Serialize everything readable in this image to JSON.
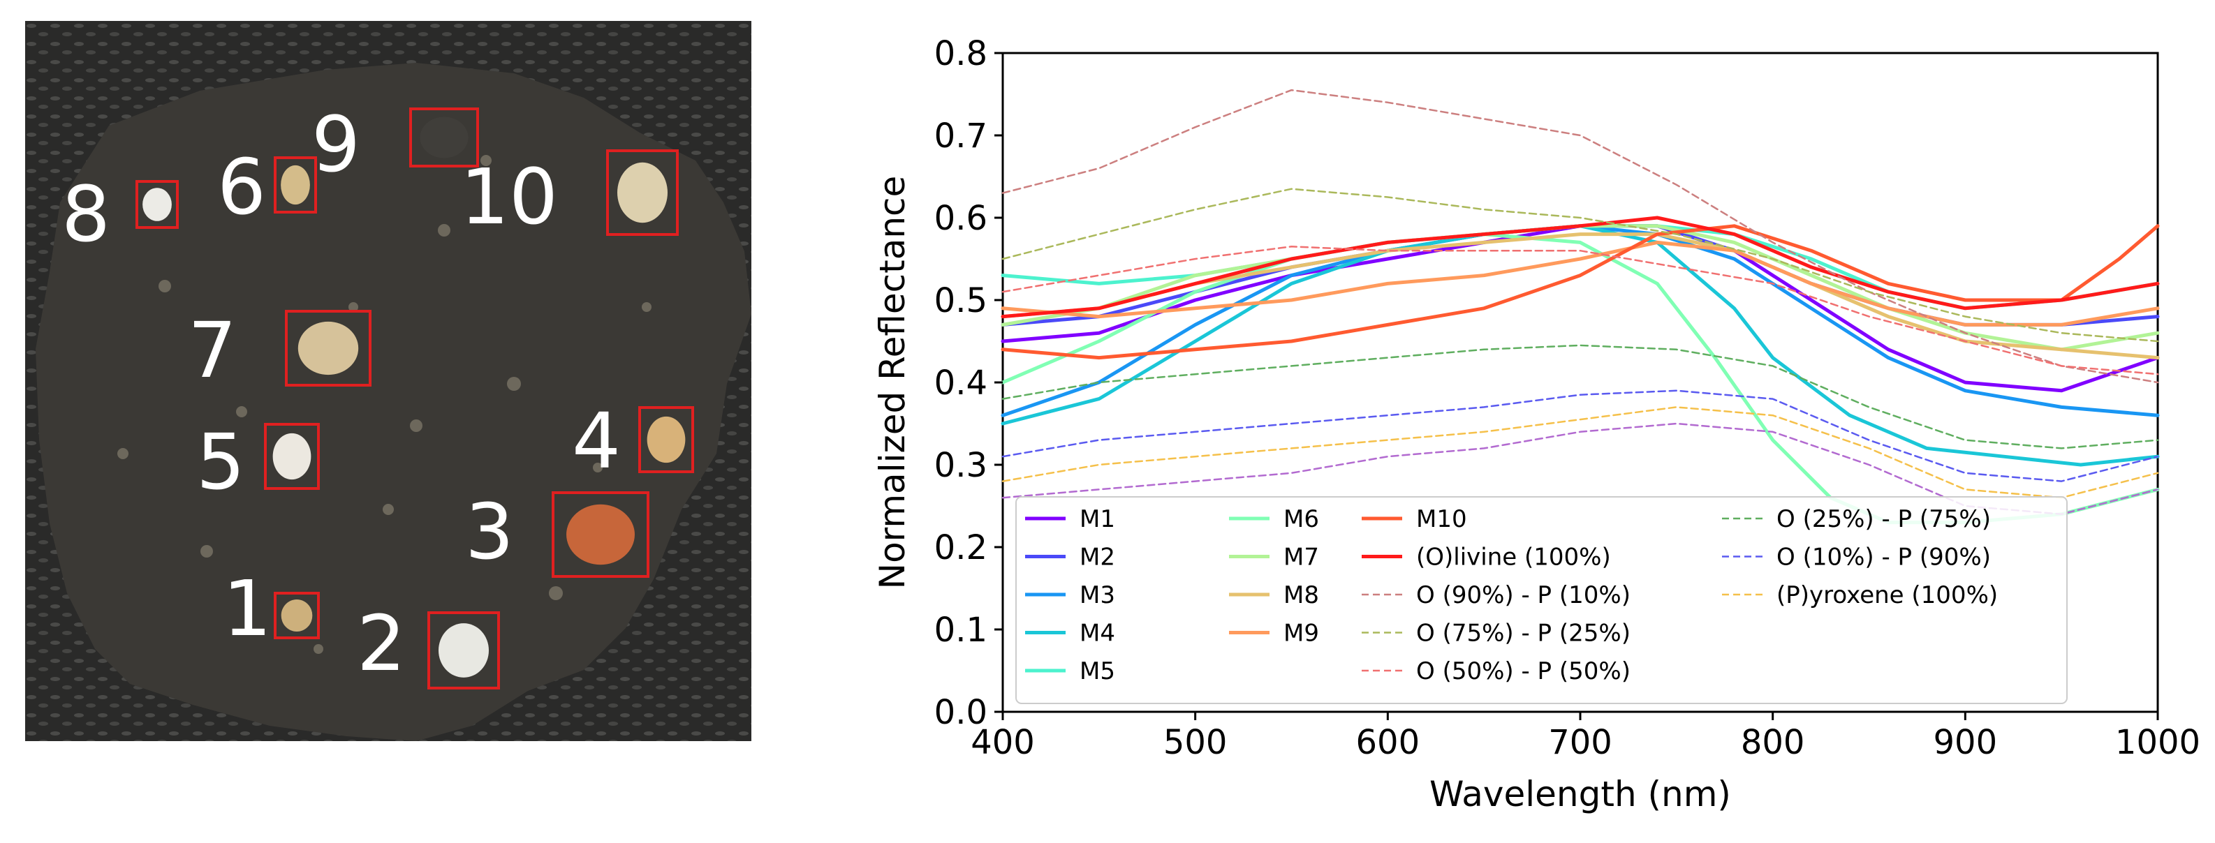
{
  "photo": {
    "description_colors": {
      "box": "#e02020",
      "label": "#ffffff",
      "background": "#2b2a28",
      "rock": "#3a3834"
    },
    "regions": [
      {
        "label": "1"
      },
      {
        "label": "2"
      },
      {
        "label": "3"
      },
      {
        "label": "4"
      },
      {
        "label": "5"
      },
      {
        "label": "6"
      },
      {
        "label": "7"
      },
      {
        "label": "8"
      },
      {
        "label": "9"
      },
      {
        "label": "10"
      }
    ]
  },
  "chart_data": {
    "type": "line",
    "xlabel": "Wavelength (nm)",
    "ylabel": "Normalized Reflectance",
    "xlim": [
      400,
      1000
    ],
    "ylim": [
      0.0,
      0.8
    ],
    "xticks": [
      "400",
      "500",
      "600",
      "700",
      "800",
      "900",
      "1000"
    ],
    "yticks": [
      "0.0",
      "0.1",
      "0.2",
      "0.3",
      "0.4",
      "0.5",
      "0.6",
      "0.7",
      "0.8"
    ],
    "grid": false,
    "legend_position": "bottom",
    "series": [
      {
        "name": "M1",
        "color": "#8000ff",
        "style": "solid",
        "x": [
          400,
          450,
          500,
          550,
          600,
          650,
          700,
          740,
          780,
          820,
          860,
          900,
          950,
          1000
        ],
        "values": [
          0.45,
          0.46,
          0.5,
          0.53,
          0.55,
          0.57,
          0.59,
          0.59,
          0.56,
          0.5,
          0.44,
          0.4,
          0.39,
          0.43
        ]
      },
      {
        "name": "M2",
        "color": "#4a49f8",
        "style": "solid",
        "x": [
          400,
          450,
          500,
          550,
          600,
          650,
          700,
          740,
          780,
          820,
          860,
          900,
          950,
          1000
        ],
        "values": [
          0.47,
          0.48,
          0.51,
          0.54,
          0.56,
          0.58,
          0.59,
          0.59,
          0.56,
          0.52,
          0.49,
          0.47,
          0.47,
          0.48
        ]
      },
      {
        "name": "M3",
        "color": "#1996f3",
        "style": "solid",
        "x": [
          400,
          450,
          500,
          550,
          600,
          650,
          700,
          740,
          780,
          820,
          860,
          900,
          950,
          1000
        ],
        "values": [
          0.36,
          0.4,
          0.47,
          0.53,
          0.56,
          0.58,
          0.59,
          0.58,
          0.55,
          0.49,
          0.43,
          0.39,
          0.37,
          0.36
        ]
      },
      {
        "name": "M4",
        "color": "#1ac6d7",
        "style": "solid",
        "x": [
          400,
          450,
          500,
          550,
          600,
          650,
          700,
          740,
          780,
          800,
          840,
          880,
          920,
          960,
          1000
        ],
        "values": [
          0.35,
          0.38,
          0.45,
          0.52,
          0.56,
          0.58,
          0.59,
          0.57,
          0.49,
          0.43,
          0.36,
          0.32,
          0.31,
          0.3,
          0.31
        ]
      },
      {
        "name": "M5",
        "color": "#4cf2ce",
        "style": "solid",
        "x": [
          400,
          450,
          500,
          550,
          600,
          650,
          700,
          740,
          780,
          820,
          860,
          900,
          950,
          1000
        ],
        "values": [
          0.53,
          0.52,
          0.53,
          0.55,
          0.57,
          0.58,
          0.59,
          0.59,
          0.58,
          0.55,
          0.51,
          0.49,
          0.5,
          0.52
        ]
      },
      {
        "name": "M6",
        "color": "#80ffb4",
        "style": "solid",
        "x": [
          400,
          450,
          500,
          550,
          600,
          650,
          700,
          740,
          770,
          800,
          830,
          860,
          900,
          950,
          1000
        ],
        "values": [
          0.4,
          0.45,
          0.51,
          0.55,
          0.57,
          0.58,
          0.57,
          0.52,
          0.43,
          0.33,
          0.26,
          0.23,
          0.23,
          0.24,
          0.27
        ]
      },
      {
        "name": "M7",
        "color": "#b2f396",
        "style": "solid",
        "x": [
          400,
          450,
          500,
          550,
          600,
          650,
          700,
          740,
          780,
          820,
          860,
          900,
          950,
          1000
        ],
        "values": [
          0.47,
          0.49,
          0.53,
          0.55,
          0.57,
          0.58,
          0.59,
          0.59,
          0.57,
          0.53,
          0.49,
          0.46,
          0.44,
          0.46
        ]
      },
      {
        "name": "M8",
        "color": "#e6c16e",
        "style": "solid",
        "x": [
          400,
          450,
          500,
          550,
          600,
          650,
          700,
          740,
          780,
          820,
          860,
          900,
          950,
          1000
        ],
        "values": [
          0.48,
          0.49,
          0.52,
          0.54,
          0.56,
          0.57,
          0.58,
          0.58,
          0.56,
          0.52,
          0.48,
          0.45,
          0.44,
          0.43
        ]
      },
      {
        "name": "M9",
        "color": "#ff9a5c",
        "style": "solid",
        "x": [
          400,
          450,
          500,
          550,
          600,
          650,
          700,
          740,
          780,
          820,
          860,
          900,
          950,
          1000
        ],
        "values": [
          0.49,
          0.48,
          0.49,
          0.5,
          0.52,
          0.53,
          0.55,
          0.57,
          0.56,
          0.52,
          0.49,
          0.47,
          0.47,
          0.49
        ]
      },
      {
        "name": "M10",
        "color": "#ff5a30",
        "style": "solid",
        "x": [
          400,
          450,
          500,
          550,
          600,
          650,
          700,
          740,
          780,
          820,
          860,
          900,
          950,
          980,
          1000
        ],
        "values": [
          0.44,
          0.43,
          0.44,
          0.45,
          0.47,
          0.49,
          0.53,
          0.58,
          0.59,
          0.56,
          0.52,
          0.5,
          0.5,
          0.55,
          0.59
        ]
      },
      {
        "name": "(O)livine (100%)",
        "color": "#ff1a1a",
        "style": "solid",
        "x": [
          400,
          450,
          500,
          550,
          600,
          650,
          700,
          740,
          780,
          820,
          860,
          900,
          950,
          1000
        ],
        "values": [
          0.48,
          0.49,
          0.52,
          0.55,
          0.57,
          0.58,
          0.59,
          0.6,
          0.58,
          0.54,
          0.51,
          0.49,
          0.5,
          0.52
        ]
      },
      {
        "name": "O (90%) - P (10%)",
        "color": "#cc7f7f",
        "style": "dashed",
        "x": [
          400,
          450,
          500,
          550,
          600,
          650,
          700,
          750,
          800,
          850,
          900,
          950,
          1000
        ],
        "values": [
          0.63,
          0.66,
          0.71,
          0.755,
          0.74,
          0.72,
          0.7,
          0.64,
          0.57,
          0.51,
          0.46,
          0.42,
          0.4
        ]
      },
      {
        "name": "O (75%) - P (25%)",
        "color": "#aab85a",
        "style": "dashed",
        "x": [
          400,
          450,
          500,
          550,
          600,
          650,
          700,
          750,
          800,
          850,
          900,
          950,
          1000
        ],
        "values": [
          0.55,
          0.58,
          0.61,
          0.635,
          0.625,
          0.61,
          0.6,
          0.58,
          0.55,
          0.51,
          0.48,
          0.46,
          0.45
        ]
      },
      {
        "name": "O (50%) - P (50%)",
        "color": "#f07070",
        "style": "dashed",
        "x": [
          400,
          450,
          500,
          550,
          600,
          650,
          700,
          750,
          800,
          850,
          900,
          950,
          1000
        ],
        "values": [
          0.51,
          0.53,
          0.55,
          0.565,
          0.56,
          0.56,
          0.56,
          0.54,
          0.52,
          0.48,
          0.45,
          0.42,
          0.41
        ]
      },
      {
        "name": "O (25%) - P (75%)",
        "color": "#5fae5f",
        "style": "dashed",
        "x": [
          400,
          450,
          500,
          550,
          600,
          650,
          700,
          750,
          800,
          850,
          900,
          950,
          1000
        ],
        "values": [
          0.38,
          0.4,
          0.41,
          0.42,
          0.43,
          0.44,
          0.445,
          0.44,
          0.42,
          0.37,
          0.33,
          0.32,
          0.33
        ]
      },
      {
        "name": "O (10%) - P (90%)",
        "color": "#5a5af0",
        "style": "dashed",
        "x": [
          400,
          450,
          500,
          550,
          600,
          650,
          700,
          750,
          800,
          850,
          900,
          950,
          1000
        ],
        "values": [
          0.31,
          0.33,
          0.34,
          0.35,
          0.36,
          0.37,
          0.385,
          0.39,
          0.38,
          0.33,
          0.29,
          0.28,
          0.31
        ]
      },
      {
        "name": "(P)yroxene (100%)",
        "color": "#f5c04a",
        "style": "dashed",
        "x": [
          400,
          450,
          500,
          550,
          600,
          650,
          700,
          750,
          800,
          850,
          900,
          950,
          1000
        ],
        "values": [
          0.28,
          0.3,
          0.31,
          0.32,
          0.33,
          0.34,
          0.355,
          0.37,
          0.36,
          0.32,
          0.27,
          0.26,
          0.29
        ]
      },
      {
        "name": "",
        "color": "#b26ad0",
        "style": "dashed",
        "x": [
          400,
          450,
          500,
          550,
          600,
          650,
          700,
          750,
          800,
          850,
          900,
          950,
          1000
        ],
        "values": [
          0.26,
          0.27,
          0.28,
          0.29,
          0.31,
          0.32,
          0.34,
          0.35,
          0.34,
          0.3,
          0.25,
          0.24,
          0.27
        ]
      }
    ]
  }
}
